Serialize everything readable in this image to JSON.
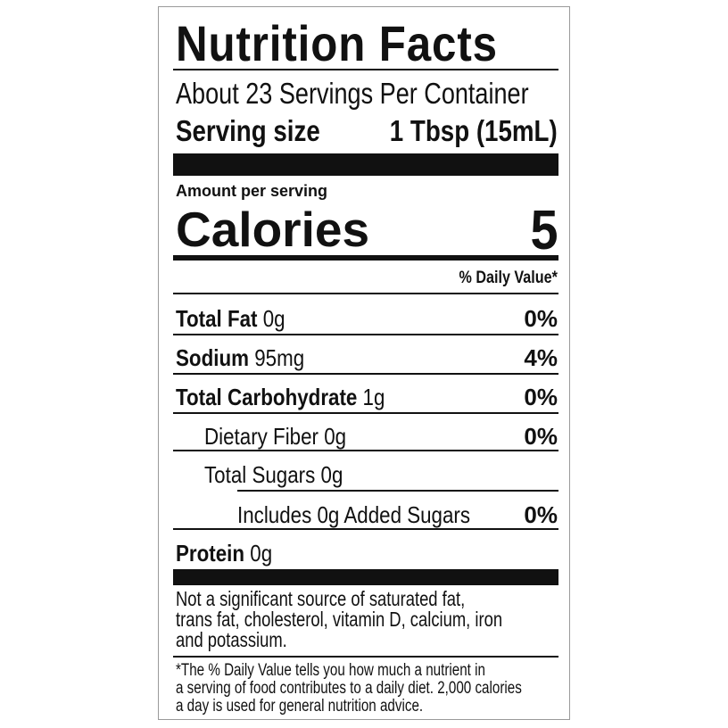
{
  "title": "Nutrition Facts",
  "servings_per_container": "About 23 Servings Per Container",
  "serving_size": {
    "label": "Serving size",
    "value": "1 Tbsp (15mL)"
  },
  "amount_per_serving": "Amount per serving",
  "calories": {
    "label": "Calories",
    "value": "5"
  },
  "daily_value_header": "% Daily Value*",
  "nutrients": [
    {
      "name": "Total Fat",
      "amount": "0g",
      "dv": "0%"
    },
    {
      "name": "Sodium",
      "amount": "95mg",
      "dv": "4%"
    },
    {
      "name": "Total Carbohydrate",
      "amount": "1g",
      "dv": "0%"
    },
    {
      "name": "Dietary Fiber 0g",
      "dv": "0%"
    },
    {
      "name": "Total Sugars 0g"
    },
    {
      "name": "Includes 0g Added Sugars",
      "dv": "0%"
    },
    {
      "name": "Protein",
      "amount": "0g"
    }
  ],
  "not_significant": [
    "Not a significant source of saturated fat,",
    "trans fat, cholesterol, vitamin D, calcium, iron",
    "and potassium."
  ],
  "footnote": [
    "*The % Daily Value tells you how much a nutrient in",
    "a serving of food contributes to a daily diet. 2,000 calories",
    "a day is used for general nutrition advice."
  ]
}
